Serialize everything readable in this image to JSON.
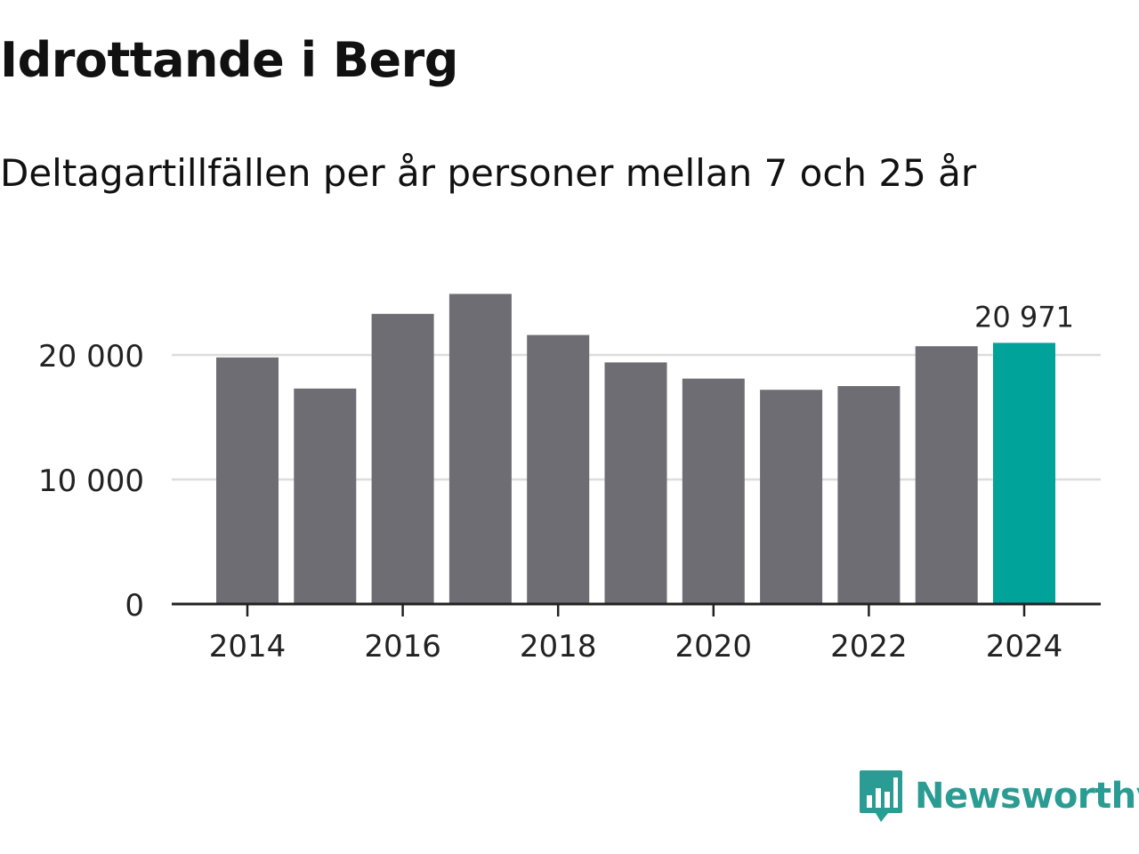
{
  "header": {
    "title": "Idrottande i Berg",
    "subtitle": "Deltagartillfällen per år personer mellan 7 och 25 år"
  },
  "brand": {
    "name": "Newsworthy",
    "logo_icon": "bar-chart-speech-bubble-icon",
    "color": "#2a9c93"
  },
  "colors": {
    "bar": "#6e6d73",
    "highlight": "#00a39a",
    "grid": "#dddddd",
    "axis": "#222222",
    "text": "#222222"
  },
  "chart_data": {
    "type": "bar",
    "title": "Idrottande i Berg",
    "subtitle": "Deltagartillfällen per år personer mellan 7 och 25 år",
    "xlabel": "",
    "ylabel": "",
    "categories": [
      "2014",
      "2015",
      "2016",
      "2017",
      "2018",
      "2019",
      "2020",
      "2021",
      "2022",
      "2023",
      "2024"
    ],
    "values": [
      19800,
      17300,
      23300,
      24900,
      21600,
      19400,
      18100,
      17200,
      17500,
      20700,
      20971
    ],
    "highlight_index": 10,
    "highlight_label": "20 971",
    "ylim": [
      0,
      25000
    ],
    "yticks": [
      0,
      10000,
      20000
    ],
    "ytick_labels": [
      "0",
      "10 000",
      "20 000"
    ],
    "xtick_labels": [
      "2014",
      "2016",
      "2018",
      "2020",
      "2022",
      "2024"
    ],
    "grid": true,
    "legend": "none"
  }
}
